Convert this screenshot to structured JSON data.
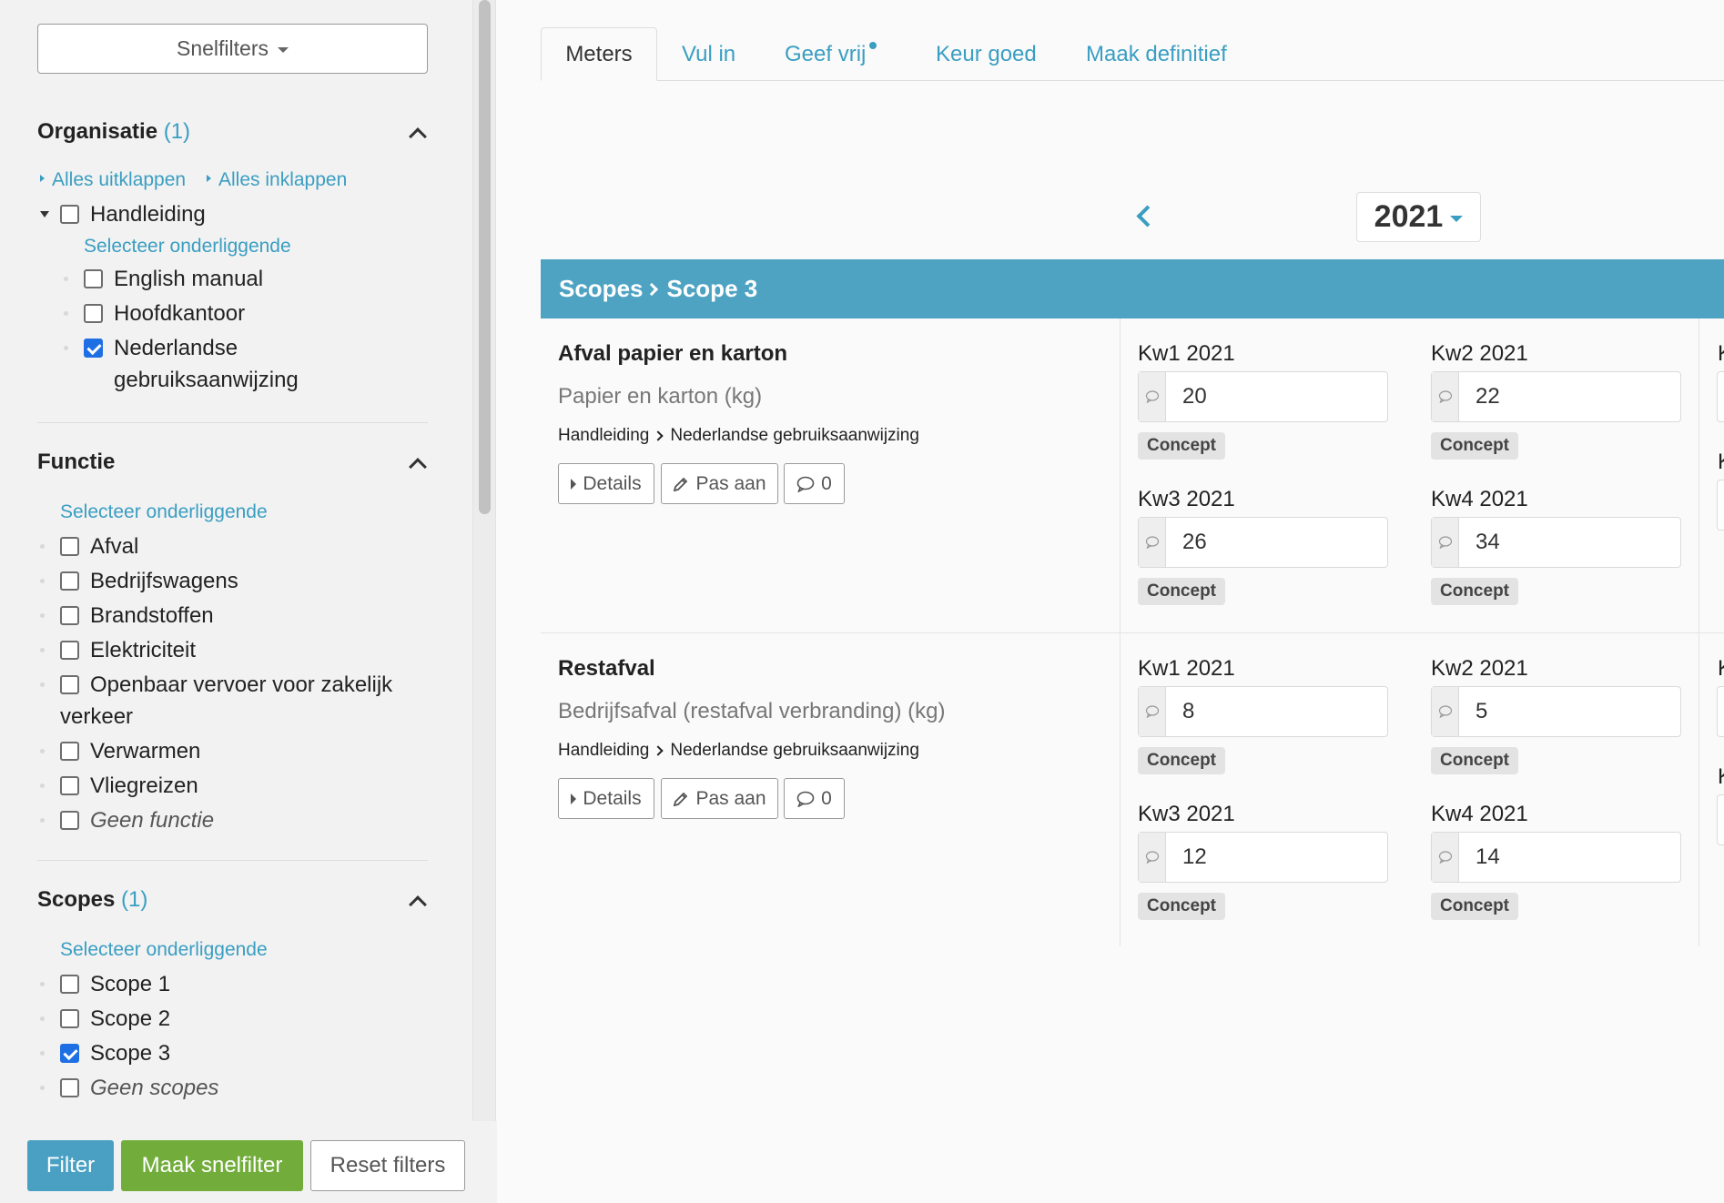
{
  "sidebar": {
    "snelfilters_label": "Snelfilters",
    "organisatie": {
      "title": "Organisatie",
      "count": "(1)",
      "expand_all": "Alles uitklappen",
      "collapse_all": "Alles inklappen",
      "root_label": "Handleiding",
      "select_children": "Selecteer onderliggende",
      "children": [
        {
          "label": "English manual",
          "checked": false
        },
        {
          "label": "Hoofdkantoor",
          "checked": false
        },
        {
          "label": "Nederlandse gebruiksaanwijzing",
          "checked": true
        }
      ]
    },
    "functie": {
      "title": "Functie",
      "select_children": "Selecteer onderliggende",
      "items": [
        "Afval",
        "Bedrijfswagens",
        "Brandstoffen",
        "Elektriciteit",
        "Openbaar vervoer voor zakelijk verkeer",
        "Verwarmen",
        "Vliegreizen",
        "Geen functie"
      ]
    },
    "scopes": {
      "title": "Scopes",
      "count": "(1)",
      "select_children": "Selecteer onderliggende",
      "items": [
        {
          "label": "Scope 1",
          "checked": false
        },
        {
          "label": "Scope 2",
          "checked": false
        },
        {
          "label": "Scope 3",
          "checked": true
        },
        {
          "label": "Geen scopes",
          "checked": false
        }
      ]
    },
    "footer": {
      "filter_label": "Filter",
      "snelfilter_label": "Maak snelfilter",
      "reset_label": "Reset filters"
    }
  },
  "tabs": [
    "Meters",
    "Vul in",
    "Geef vrij",
    "Keur goed",
    "Maak definitief"
  ],
  "year": "2021",
  "breadcrumb": {
    "parent": "Scopes",
    "current": "Scope 3"
  },
  "meters": [
    {
      "title": "Afval papier en karton",
      "unit": "Papier en karton (kg)",
      "path": {
        "org": "Handleiding",
        "sub": "Nederlandse gebruiksaanwijzing"
      },
      "buttons": {
        "details": "Details",
        "edit": "Pas aan",
        "comments": "0"
      },
      "quarters": [
        {
          "label": "Kw1 2021",
          "value": "20",
          "status": "Concept"
        },
        {
          "label": "Kw2 2021",
          "value": "22",
          "status": "Concept"
        },
        {
          "label": "Kw3 2021",
          "value": "26",
          "status": "Concept"
        },
        {
          "label": "Kw4 2021",
          "value": "34",
          "status": "Concept"
        }
      ]
    },
    {
      "title": "Restafval",
      "unit": "Bedrijfsafval (restafval verbranding) (kg)",
      "path": {
        "org": "Handleiding",
        "sub": "Nederlandse gebruiksaanwijzing"
      },
      "buttons": {
        "details": "Details",
        "edit": "Pas aan",
        "comments": "0"
      },
      "quarters": [
        {
          "label": "Kw1 2021",
          "value": "8",
          "status": "Concept"
        },
        {
          "label": "Kw2 2021",
          "value": "5",
          "status": "Concept"
        },
        {
          "label": "Kw3 2021",
          "value": "12",
          "status": "Concept"
        },
        {
          "label": "Kw4 2021",
          "value": "14",
          "status": "Concept"
        }
      ]
    }
  ],
  "edge_glyph": "K",
  "colors": {
    "accent": "#3a9ec2",
    "scope_bar": "#4ea3c3",
    "filter_btn": "#4aa0c3",
    "snelfilter_btn": "#72ad3c",
    "checkbox_checked": "#1f6fe4"
  }
}
